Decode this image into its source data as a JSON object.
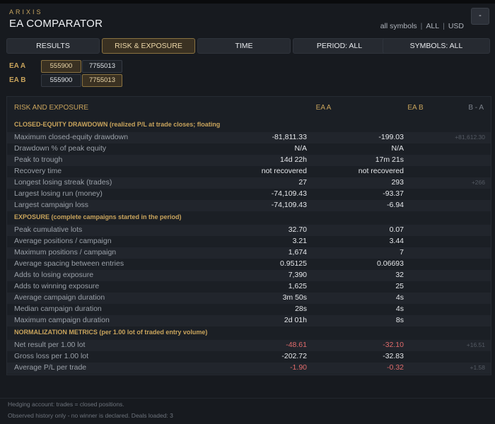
{
  "app": {
    "brand": "ARIXIS",
    "title": "EA COMPARATOR",
    "scope": {
      "symbols": "all symbols",
      "all": "ALL",
      "currency": "USD"
    },
    "window_button": "-"
  },
  "tabs": [
    {
      "label": "RESULTS",
      "active": false
    },
    {
      "label": "RISK & EXPOSURE",
      "active": true
    },
    {
      "label": "TIME",
      "active": false
    },
    {
      "label": "PERIOD: ALL",
      "active": false
    },
    {
      "label": "SYMBOLS: ALL",
      "active": false
    }
  ],
  "selectors": {
    "ea_a": {
      "label": "EA A",
      "options": [
        "555900",
        "7755013"
      ],
      "selected": "555900"
    },
    "ea_b": {
      "label": "EA B",
      "options": [
        "555900",
        "7755013"
      ],
      "selected": "7755013"
    }
  },
  "table": {
    "headers": {
      "label": "RISK AND EXPOSURE",
      "a": "EA A",
      "b": "EA B",
      "diff": "B - A"
    },
    "sections": [
      {
        "title": "CLOSED-EQUITY DRAWDOWN (realized P/L at trade closes; floating",
        "rows": [
          {
            "label": "Maximum closed-equity drawdown",
            "a": "-81,811.33",
            "b": "-199.03",
            "diff": "+81,612.30"
          },
          {
            "label": "Drawdown % of peak equity",
            "a": "N/A",
            "b": "N/A",
            "diff": ""
          },
          {
            "label": "Peak to trough",
            "a": "14d 22h",
            "b": "17m 21s",
            "diff": ""
          },
          {
            "label": "Recovery time",
            "a": "not recovered",
            "b": "not recovered",
            "diff": ""
          },
          {
            "label": "Longest losing streak (trades)",
            "a": "27",
            "b": "293",
            "diff": "+266"
          },
          {
            "label": "Largest losing run (money)",
            "a": "-74,109.43",
            "b": "-93.37",
            "diff": ""
          },
          {
            "label": "Largest campaign loss",
            "a": "-74,109.43",
            "b": "-6.94",
            "diff": ""
          }
        ]
      },
      {
        "title": "EXPOSURE (complete campaigns started in the period)",
        "rows": [
          {
            "label": "Peak cumulative lots",
            "a": "32.70",
            "b": "0.07",
            "diff": ""
          },
          {
            "label": "Average positions / campaign",
            "a": "3.21",
            "b": "3.44",
            "diff": ""
          },
          {
            "label": "Maximum positions / campaign",
            "a": "1,674",
            "b": "7",
            "diff": ""
          },
          {
            "label": "Average spacing between entries",
            "a": "0.95125",
            "b": "0.06693",
            "diff": ""
          },
          {
            "label": "Adds to losing exposure",
            "a": "7,390",
            "b": "32",
            "diff": ""
          },
          {
            "label": "Adds to winning exposure",
            "a": "1,625",
            "b": "25",
            "diff": ""
          },
          {
            "label": "Average campaign duration",
            "a": "3m 50s",
            "b": "4s",
            "diff": ""
          },
          {
            "label": "Median campaign duration",
            "a": "28s",
            "b": "4s",
            "diff": ""
          },
          {
            "label": "Maximum campaign duration",
            "a": "2d 01h",
            "b": "8s",
            "diff": ""
          }
        ]
      },
      {
        "title": "NORMALIZATION METRICS (per 1.00 lot of traded entry volume)",
        "rows": [
          {
            "label": "Net result per 1.00 lot",
            "a": "-48.61",
            "b": "-32.10",
            "diff": "+16.51",
            "neg": true
          },
          {
            "label": "Gross loss per 1.00 lot",
            "a": "-202.72",
            "b": "-32.83",
            "diff": ""
          },
          {
            "label": "Average P/L per trade",
            "a": "-1.90",
            "b": "-0.32",
            "diff": "+1.58",
            "neg": true
          }
        ]
      }
    ]
  },
  "footer": {
    "line1": "Hedging account: trades = closed positions.",
    "line2": "Observed history only - no winner is declared.  Deals loaded: 3"
  },
  "colors": {
    "accent": "#c9a45c",
    "negative": "#e06b6b",
    "background": "#171a1f"
  }
}
